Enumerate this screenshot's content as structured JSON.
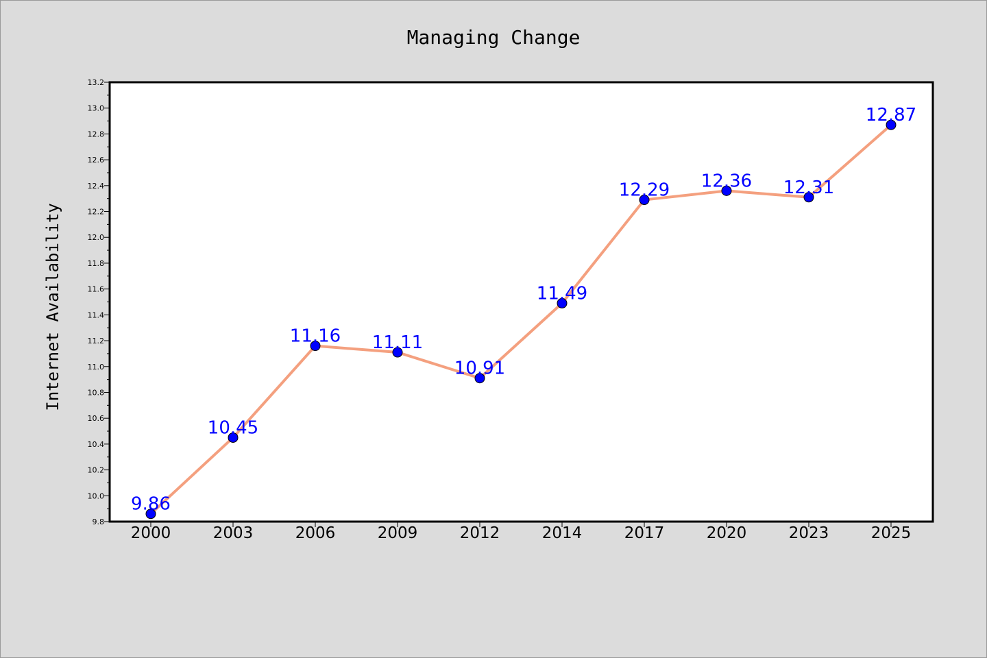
{
  "chart_data": {
    "type": "line",
    "title": "Managing Change",
    "xlabel": "",
    "ylabel": "Internet Availability",
    "categories": [
      "2000",
      "2003",
      "2006",
      "2009",
      "2012",
      "2014",
      "2017",
      "2020",
      "2023",
      "2025"
    ],
    "series": [
      {
        "values": [
          9.86,
          10.45,
          11.16,
          11.11,
          10.91,
          11.49,
          12.29,
          12.36,
          12.31,
          12.87
        ],
        "data_labels": [
          "9.86",
          "10.45",
          "11.16",
          "11.11",
          "10.91",
          "11.49",
          "12.29",
          "12.36",
          "12.31",
          "12.87"
        ]
      }
    ],
    "ylim": [
      9.8,
      13.2
    ],
    "yticks": [
      "9.8",
      "10.0",
      "10.2",
      "10.4",
      "10.6",
      "10.8",
      "11.0",
      "11.2",
      "11.4",
      "11.6",
      "11.8",
      "12.0",
      "12.2",
      "12.4",
      "12.6",
      "12.8",
      "13.0",
      "13.2"
    ],
    "grid": false,
    "legend": "none",
    "colors": {
      "background": "#dcdcdc",
      "plot_background": "#ffffff",
      "line": "#f4a07f",
      "marker": "#0000ff",
      "data_label": "#0000ff"
    }
  }
}
